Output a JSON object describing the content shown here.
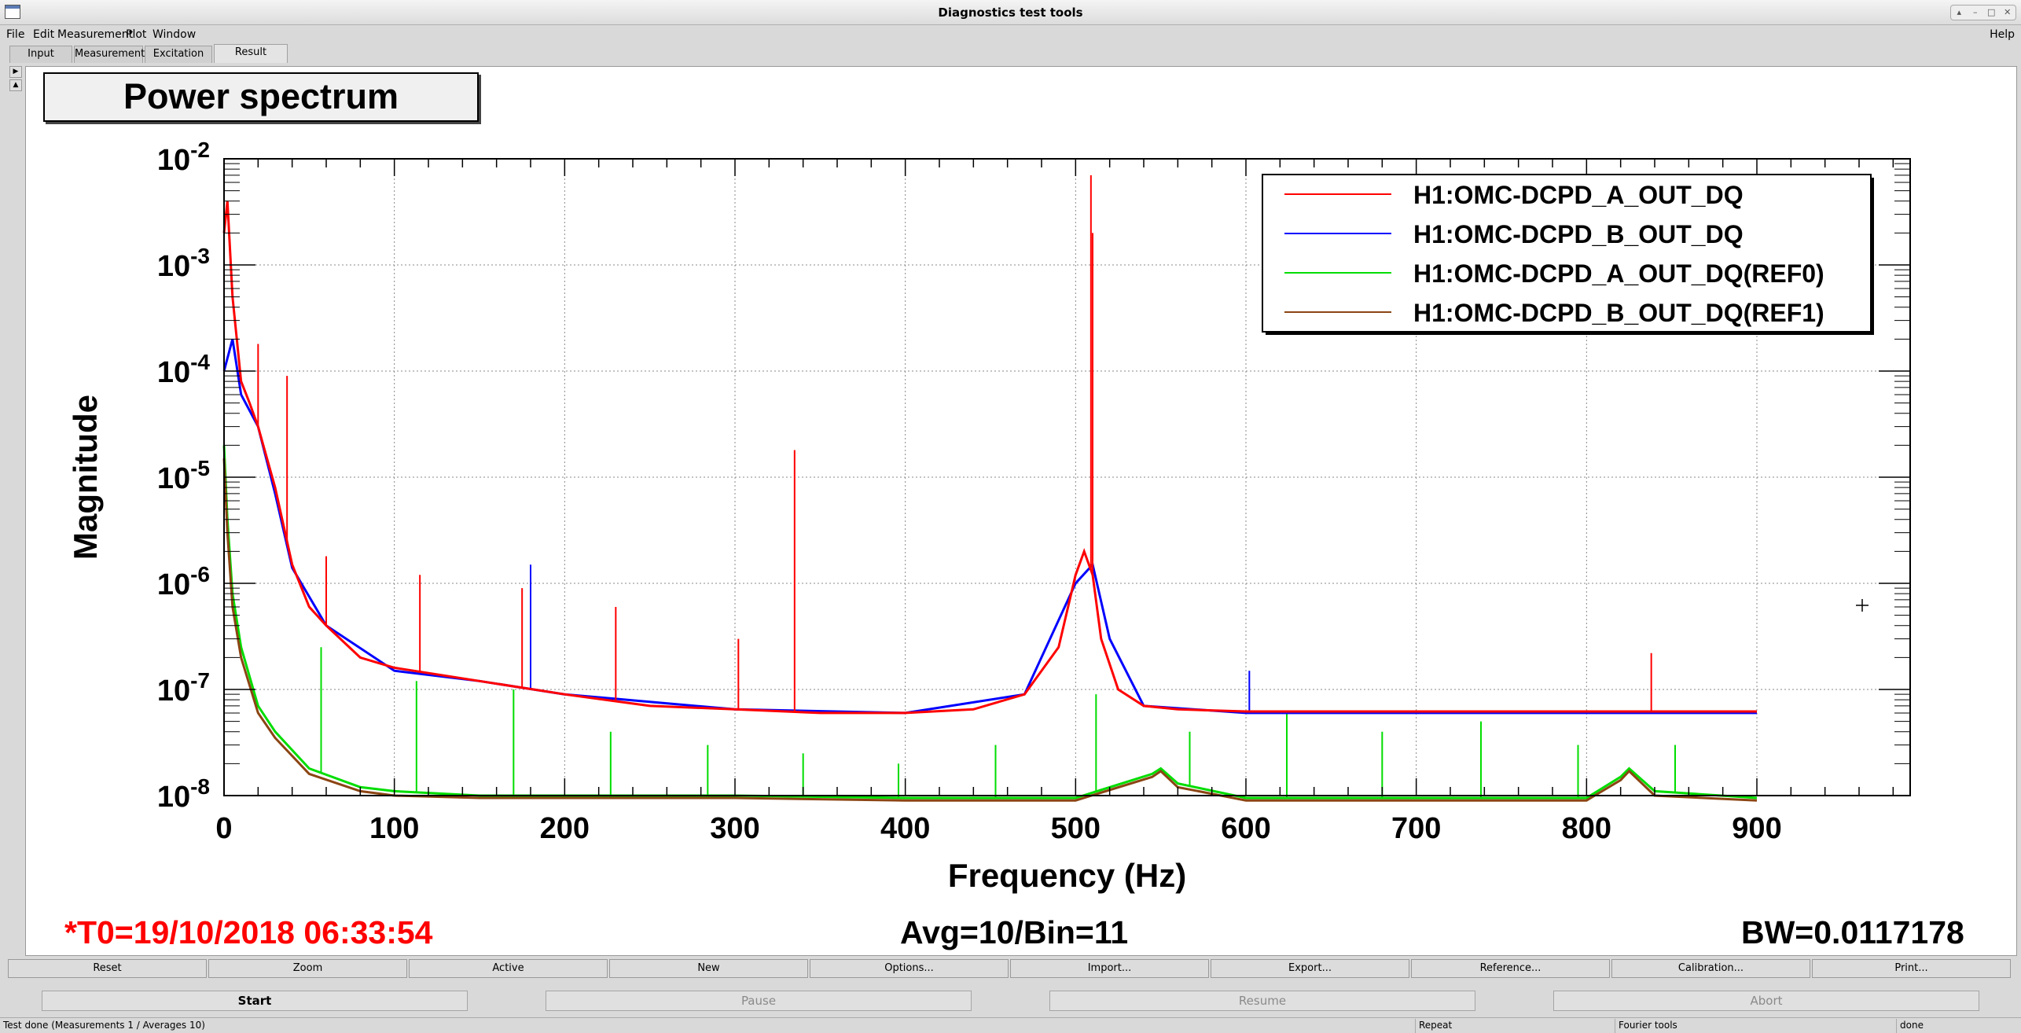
{
  "window": {
    "title": "Diagnostics test tools"
  },
  "menu": {
    "items": [
      "File",
      "Edit",
      "Measurement",
      "Plot",
      "Window"
    ],
    "help": "Help"
  },
  "tabs": [
    "Input",
    "Measurement",
    "Excitation",
    "Result"
  ],
  "active_tab": "Result",
  "plot": {
    "heading": "Power spectrum",
    "t0_label": "*T0=19/10/2018 06:33:54",
    "avg_label": "Avg=10/Bin=11",
    "bw_label": "BW=0.0117178"
  },
  "chart_data": {
    "type": "line",
    "title": "",
    "xlabel": "Frequency (Hz)",
    "ylabel": "Magnitude",
    "xlim": [
      0,
      990
    ],
    "ylim": [
      1e-08,
      0.01
    ],
    "y_log": true,
    "grid": true,
    "legend_position": "top-right",
    "x_ticks": [
      "0",
      "100",
      "200",
      "300",
      "400",
      "500",
      "600",
      "700",
      "800",
      "900"
    ],
    "y_tick_mantissa": "10",
    "y_tick_exponents": [
      "-2",
      "-3",
      "-4",
      "-5",
      "-6",
      "-7",
      "-8"
    ],
    "series": [
      {
        "name": "H1:OMC-DCPD_A_OUT_DQ",
        "color": "#ff0000",
        "x": [
          0,
          2,
          5,
          10,
          15,
          20,
          30,
          40,
          50,
          60,
          80,
          100,
          150,
          200,
          250,
          300,
          350,
          400,
          440,
          470,
          490,
          500,
          505,
          510,
          515,
          525,
          540,
          560,
          600,
          700,
          800,
          900
        ],
        "y": [
          0.002,
          0.004,
          0.0005,
          8e-05,
          5e-05,
          3e-05,
          8e-06,
          1.5e-06,
          6e-07,
          4e-07,
          2e-07,
          1.6e-07,
          1.2e-07,
          9e-08,
          7e-08,
          6.5e-08,
          6e-08,
          6e-08,
          6.5e-08,
          9e-08,
          2.5e-07,
          1.2e-06,
          2e-06,
          1.2e-06,
          3e-07,
          1e-07,
          7e-08,
          6.5e-08,
          6.2e-08,
          6.2e-08,
          6.2e-08,
          6.2e-08
        ],
        "peaks": [
          [
            509,
            0.007
          ],
          [
            510,
            0.002
          ],
          [
            335,
            1.8e-05
          ],
          [
            115,
            1.2e-06
          ],
          [
            60,
            1.8e-06
          ],
          [
            20,
            0.00018
          ],
          [
            37,
            9e-05
          ],
          [
            175,
            9e-07
          ],
          [
            230,
            6e-07
          ],
          [
            302,
            3e-07
          ],
          [
            838,
            2.2e-07
          ]
        ]
      },
      {
        "name": "H1:OMC-DCPD_B_OUT_DQ",
        "color": "#0000ff",
        "x": [
          0,
          5,
          10,
          20,
          30,
          40,
          60,
          100,
          150,
          200,
          300,
          400,
          470,
          500,
          510,
          520,
          540,
          600,
          900
        ],
        "y": [
          0.0001,
          0.0002,
          6e-05,
          3e-05,
          7e-06,
          1.4e-06,
          4e-07,
          1.5e-07,
          1.2e-07,
          9e-08,
          6.5e-08,
          6e-08,
          9e-08,
          1e-06,
          1.5e-06,
          3e-07,
          7e-08,
          6e-08,
          6e-08
        ],
        "peaks": [
          [
            180,
            1.5e-06
          ],
          [
            602,
            1.5e-07
          ]
        ]
      },
      {
        "name": "H1:OMC-DCPD_A_OUT_DQ(REF0)",
        "color": "#00dd00",
        "x": [
          0,
          2,
          5,
          10,
          20,
          30,
          50,
          80,
          100,
          150,
          200,
          300,
          400,
          500,
          545,
          550,
          560,
          600,
          700,
          800,
          820,
          825,
          840,
          900
        ],
        "y": [
          2e-05,
          4e-06,
          8e-07,
          2.5e-07,
          7e-08,
          4e-08,
          1.8e-08,
          1.2e-08,
          1.1e-08,
          1e-08,
          1e-08,
          1e-08,
          9.5e-09,
          9.5e-09,
          1.6e-08,
          1.8e-08,
          1.3e-08,
          9.5e-09,
          9.5e-09,
          9.5e-09,
          1.5e-08,
          1.8e-08,
          1.1e-08,
          9.5e-09
        ],
        "peaks": [
          [
            57,
            2.5e-07
          ],
          [
            113,
            1.2e-07
          ],
          [
            170,
            1e-07
          ],
          [
            227,
            4e-08
          ],
          [
            284,
            3e-08
          ],
          [
            340,
            2.5e-08
          ],
          [
            396,
            2e-08
          ],
          [
            453,
            3e-08
          ],
          [
            512,
            9e-08
          ],
          [
            567,
            4e-08
          ],
          [
            624,
            6e-08
          ],
          [
            680,
            4e-08
          ],
          [
            738,
            5e-08
          ],
          [
            795,
            3e-08
          ],
          [
            852,
            3e-08
          ]
        ]
      },
      {
        "name": "H1:OMC-DCPD_B_OUT_DQ(REF1)",
        "color": "#8b4513",
        "x": [
          0,
          2,
          5,
          10,
          20,
          30,
          50,
          80,
          100,
          150,
          200,
          300,
          400,
          500,
          545,
          550,
          560,
          600,
          700,
          800,
          820,
          825,
          840,
          900
        ],
        "y": [
          1.5e-05,
          3e-06,
          6e-07,
          2e-07,
          6e-08,
          3.5e-08,
          1.6e-08,
          1.1e-08,
          1e-08,
          9.5e-09,
          9.5e-09,
          9.5e-09,
          9e-09,
          9e-09,
          1.5e-08,
          1.7e-08,
          1.2e-08,
          9e-09,
          9e-09,
          9e-09,
          1.4e-08,
          1.7e-08,
          1e-08,
          9e-09
        ],
        "peaks": []
      }
    ]
  },
  "buttons": [
    "Reset",
    "Zoom",
    "Active",
    "New",
    "Options...",
    "Import...",
    "Export...",
    "Reference...",
    "Calibration...",
    "Print..."
  ],
  "controls": {
    "start": "Start",
    "pause": "Pause",
    "resume": "Resume",
    "abort": "Abort"
  },
  "status": {
    "message": "Test done (Measurements 1 / Averages 10)",
    "mode": "Repeat",
    "tool": "Fourier tools",
    "state": "done"
  }
}
